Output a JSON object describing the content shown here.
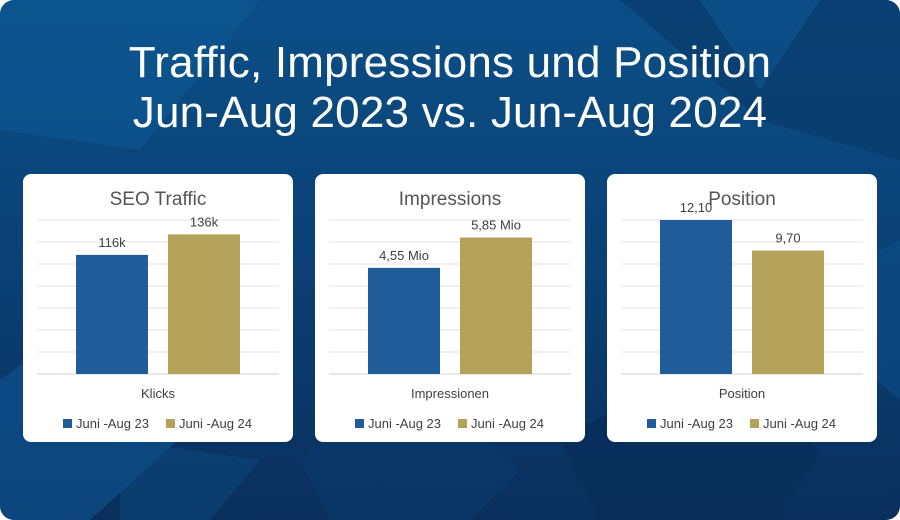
{
  "header": {
    "title_line1": "Traffic, Impressions und Position",
    "title_line2": "Jun-Aug 2023 vs. Jun-Aug 2024"
  },
  "colors": {
    "series_2023": "#1f5c99",
    "series_2024": "#b5a25a",
    "background": "#0b4f86"
  },
  "chart_data": [
    {
      "type": "bar",
      "title": "SEO Traffic",
      "categories": [
        "Klicks"
      ],
      "xlabel": "Klicks",
      "ylim": [
        0,
        150
      ],
      "grid": true,
      "legend_position": "bottom",
      "series": [
        {
          "name": "Juni -Aug 23",
          "values": [
            116
          ],
          "labels": [
            "116k"
          ]
        },
        {
          "name": "Juni -Aug 24",
          "values": [
            136
          ],
          "labels": [
            "136k"
          ]
        }
      ]
    },
    {
      "type": "bar",
      "title": "Impressions",
      "categories": [
        "Impressionen"
      ],
      "xlabel": "Impressionen",
      "ylim": [
        0,
        6.6
      ],
      "grid": true,
      "legend_position": "bottom",
      "series": [
        {
          "name": "Juni -Aug 23",
          "values": [
            4.55
          ],
          "labels": [
            "4,55 Mio"
          ]
        },
        {
          "name": "Juni -Aug 24",
          "values": [
            5.85
          ],
          "labels": [
            "5,85 Mio"
          ]
        }
      ]
    },
    {
      "type": "bar",
      "title": "Position",
      "categories": [
        "Position"
      ],
      "xlabel": "Position",
      "ylim": [
        0,
        12.1
      ],
      "grid": true,
      "legend_position": "bottom",
      "series": [
        {
          "name": "Juni -Aug 23",
          "values": [
            12.1
          ],
          "labels": [
            "12,10"
          ]
        },
        {
          "name": "Juni -Aug 24",
          "values": [
            9.7
          ],
          "labels": [
            "9,70"
          ]
        }
      ]
    }
  ]
}
